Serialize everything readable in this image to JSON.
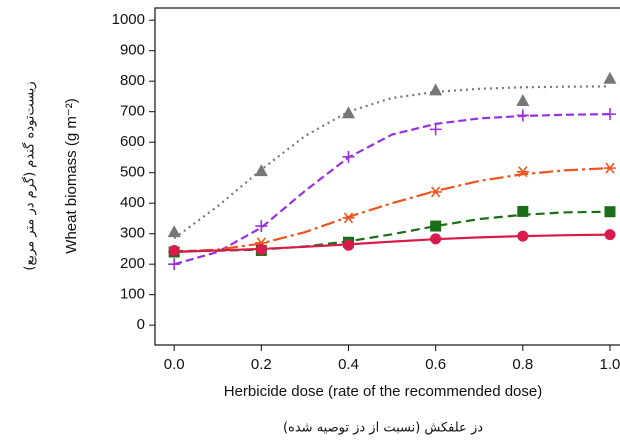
{
  "chart_data": {
    "type": "line",
    "x_label": "Herbicide dose (rate of the recommended dose)",
    "x_label_fa": "دز علفکش (نسبت از دز توصیه شده)",
    "y_label": "Wheat biomass (g m⁻²)",
    "y_label_fa": "زیست‌توده گندم (گرم در متر مربع)",
    "x": [
      0,
      0.2,
      0.4,
      0.6,
      0.8,
      1
    ],
    "fit_x": [
      0,
      0.1,
      0.2,
      0.3,
      0.4,
      0.5,
      0.6,
      0.7,
      0.8,
      0.9,
      1
    ],
    "xlim": [
      -0.044,
      1.023
    ],
    "ylim": [
      -65,
      1040
    ],
    "xticks": [
      {
        "value": 0,
        "label": "0.0"
      },
      0.2,
      0.4,
      0.6,
      0.8,
      {
        "value": 1,
        "label": "1.0"
      }
    ],
    "yticks": [
      0,
      100,
      200,
      300,
      400,
      500,
      600,
      700,
      800,
      900,
      1000
    ],
    "series": [
      {
        "color": "#777777",
        "marker": "triangle",
        "dash": "2 4",
        "values": [
          305,
          505,
          695,
          770,
          735,
          808
        ],
        "fit": [
          285,
          390,
          510,
          620,
          700,
          745,
          765,
          775,
          780,
          782,
          783
        ]
      },
      {
        "color": "#9b30e0",
        "marker": "plus",
        "dash": "8 4",
        "values": [
          200,
          325,
          552,
          642,
          688,
          692
        ],
        "fit": [
          200,
          240,
          320,
          440,
          550,
          625,
          660,
          678,
          686,
          690,
          692
        ]
      },
      {
        "color": "#f0541e",
        "marker": "star",
        "dash": "14 4 3 4",
        "values": [
          240,
          270,
          352,
          437,
          503,
          515
        ],
        "fit": [
          240,
          248,
          268,
          305,
          355,
          400,
          440,
          473,
          495,
          508,
          515
        ]
      },
      {
        "color": "#1a6e1a",
        "marker": "square",
        "dash": "9 5",
        "values": [
          240,
          245,
          272,
          325,
          373,
          372
        ],
        "fit": [
          243,
          244,
          248,
          258,
          275,
          298,
          325,
          348,
          362,
          370,
          372
        ]
      },
      {
        "color": "#d81b4a",
        "marker": "circle",
        "dash": "",
        "values": [
          245,
          248,
          262,
          283,
          292,
          297
        ],
        "fit": [
          240,
          245,
          250,
          257,
          265,
          274,
          282,
          288,
          292,
          295,
          297
        ]
      }
    ]
  }
}
